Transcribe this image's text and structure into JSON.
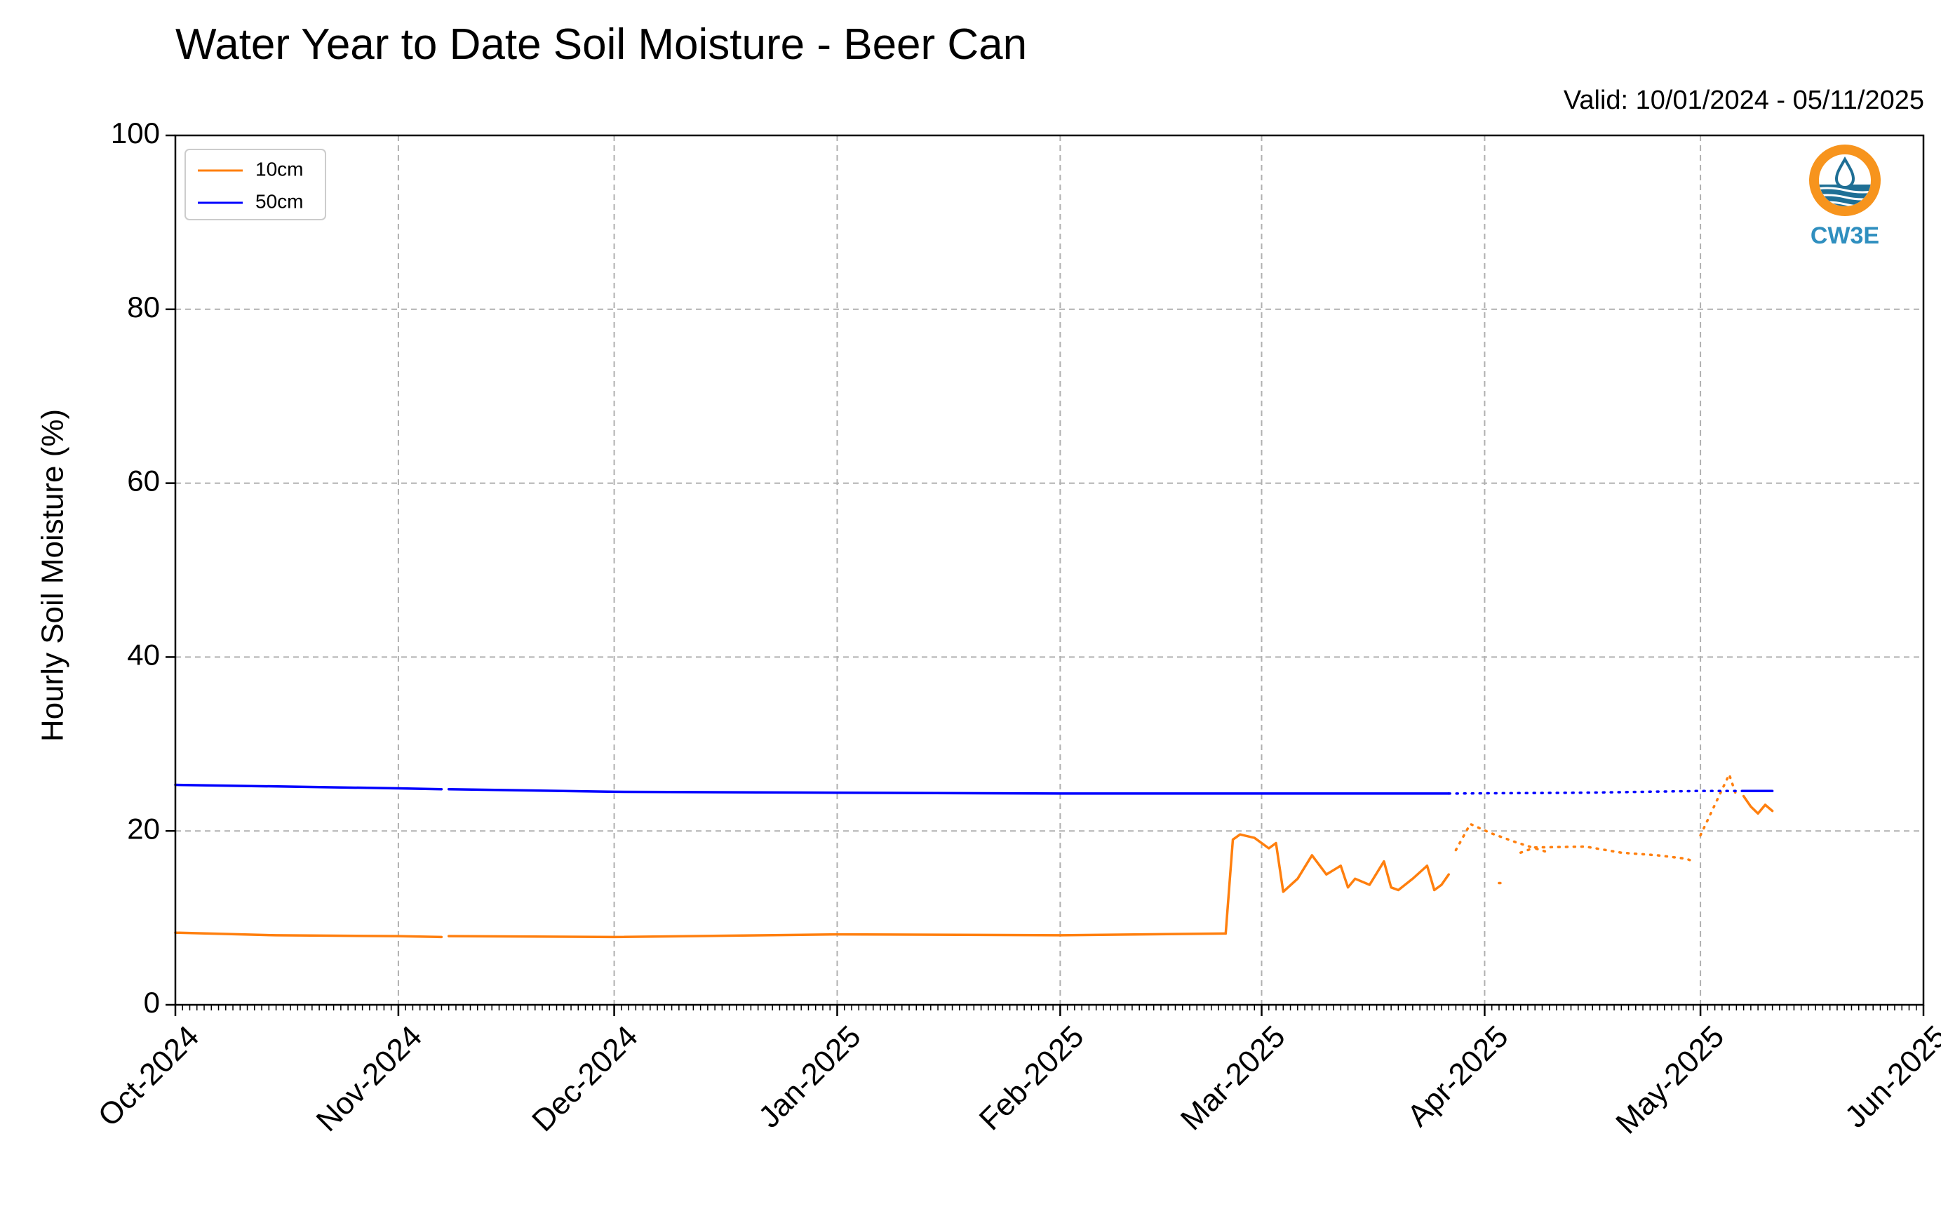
{
  "chart_data": {
    "type": "line",
    "title": "Water Year to Date Soil Moisture - Beer Can",
    "subtitle": "Valid: 10/01/2024 - 05/11/2025",
    "xlabel": "",
    "ylabel": "Hourly Soil Moisture (%)",
    "ylim": [
      0,
      100
    ],
    "xlim": [
      "2024-10-01",
      "2025-06-01"
    ],
    "x_ticks": [
      "2024-10-01",
      "2024-11-01",
      "2024-12-01",
      "2025-01-01",
      "2025-02-01",
      "2025-03-01",
      "2025-04-01",
      "2025-05-01",
      "2025-06-01"
    ],
    "x_tick_labels": [
      "Oct-2024",
      "Nov-2024",
      "Dec-2024",
      "Jan-2025",
      "Feb-2025",
      "Mar-2025",
      "Apr-2025",
      "May-2025",
      "Jun-2025"
    ],
    "y_ticks": [
      0,
      20,
      40,
      60,
      80,
      100
    ],
    "y_tick_labels": [
      "0",
      "20",
      "40",
      "60",
      "80",
      "100"
    ],
    "grid": true,
    "legend_position": "top-left",
    "series": [
      {
        "name": "10cm",
        "color": "#ff7f0e",
        "segments": [
          {
            "style": "solid",
            "points": [
              [
                "2024-10-01",
                8.3
              ],
              [
                "2024-10-15",
                8.0
              ],
              [
                "2024-11-01",
                7.9
              ],
              [
                "2024-11-07",
                7.8
              ]
            ]
          },
          {
            "style": "solid",
            "points": [
              [
                "2024-11-08",
                7.9
              ],
              [
                "2024-12-01",
                7.8
              ],
              [
                "2025-01-01",
                8.1
              ],
              [
                "2025-02-01",
                8.0
              ],
              [
                "2025-02-24",
                8.2
              ]
            ]
          },
          {
            "style": "solid",
            "points": [
              [
                "2025-02-24",
                8.2
              ],
              [
                "2025-02-25",
                19.0
              ],
              [
                "2025-02-26",
                19.6
              ],
              [
                "2025-02-28",
                19.2
              ],
              [
                "2025-03-02",
                18.0
              ],
              [
                "2025-03-03",
                18.6
              ],
              [
                "2025-03-04",
                13.0
              ],
              [
                "2025-03-06",
                14.5
              ],
              [
                "2025-03-08",
                17.2
              ],
              [
                "2025-03-10",
                15.0
              ],
              [
                "2025-03-12",
                16.0
              ],
              [
                "2025-03-13",
                13.5
              ],
              [
                "2025-03-14",
                14.5
              ],
              [
                "2025-03-16",
                13.8
              ],
              [
                "2025-03-18",
                16.5
              ],
              [
                "2025-03-19",
                13.5
              ],
              [
                "2025-03-20",
                13.2
              ],
              [
                "2025-03-22",
                14.5
              ],
              [
                "2025-03-24",
                16.0
              ],
              [
                "2025-03-25",
                13.2
              ],
              [
                "2025-03-26",
                13.8
              ],
              [
                "2025-03-27",
                15.0
              ]
            ]
          },
          {
            "style": "dotted",
            "points": [
              [
                "2025-03-28",
                17.8
              ],
              [
                "2025-03-30",
                20.8
              ],
              [
                "2025-04-02",
                19.7
              ],
              [
                "2025-04-05",
                18.8
              ],
              [
                "2025-04-08",
                18.0
              ],
              [
                "2025-04-10",
                17.5
              ]
            ]
          },
          {
            "style": "dotted",
            "points": [
              [
                "2025-04-03",
                14.0
              ],
              [
                "2025-04-04",
                14.0
              ]
            ]
          },
          {
            "style": "dotted",
            "points": [
              [
                "2025-04-06",
                17.5
              ],
              [
                "2025-04-08",
                18.1
              ],
              [
                "2025-04-15",
                18.2
              ],
              [
                "2025-04-20",
                17.5
              ],
              [
                "2025-04-25",
                17.2
              ],
              [
                "2025-04-29",
                16.8
              ],
              [
                "2025-04-30",
                16.5
              ]
            ]
          },
          {
            "style": "dotted",
            "points": [
              [
                "2025-05-01",
                19.5
              ],
              [
                "2025-05-03",
                23.0
              ],
              [
                "2025-05-05",
                26.5
              ],
              [
                "2025-05-06",
                24.0
              ]
            ]
          },
          {
            "style": "solid",
            "points": [
              [
                "2025-05-07",
                24.0
              ],
              [
                "2025-05-08",
                22.8
              ],
              [
                "2025-05-09",
                22.0
              ],
              [
                "2025-05-10",
                23.0
              ],
              [
                "2025-05-11",
                22.3
              ]
            ]
          }
        ]
      },
      {
        "name": "50cm",
        "color": "#0000ff",
        "segments": [
          {
            "style": "solid",
            "points": [
              [
                "2024-10-01",
                25.3
              ],
              [
                "2024-11-01",
                24.9
              ],
              [
                "2024-11-07",
                24.8
              ]
            ]
          },
          {
            "style": "solid",
            "points": [
              [
                "2024-11-08",
                24.8
              ],
              [
                "2024-12-01",
                24.5
              ],
              [
                "2025-01-01",
                24.4
              ],
              [
                "2025-02-01",
                24.3
              ],
              [
                "2025-03-01",
                24.3
              ],
              [
                "2025-03-27",
                24.3
              ]
            ]
          },
          {
            "style": "dotted",
            "points": [
              [
                "2025-03-27",
                24.3
              ],
              [
                "2025-04-15",
                24.4
              ],
              [
                "2025-05-01",
                24.6
              ],
              [
                "2025-05-07",
                24.6
              ]
            ]
          },
          {
            "style": "solid",
            "points": [
              [
                "2025-05-07",
                24.6
              ],
              [
                "2025-05-11",
                24.6
              ]
            ]
          }
        ]
      }
    ]
  },
  "logo": {
    "text": "CW3E",
    "ring_color": "#f7941d",
    "wave_color": "#1f6f95",
    "text_color": "#2f8fbf"
  }
}
